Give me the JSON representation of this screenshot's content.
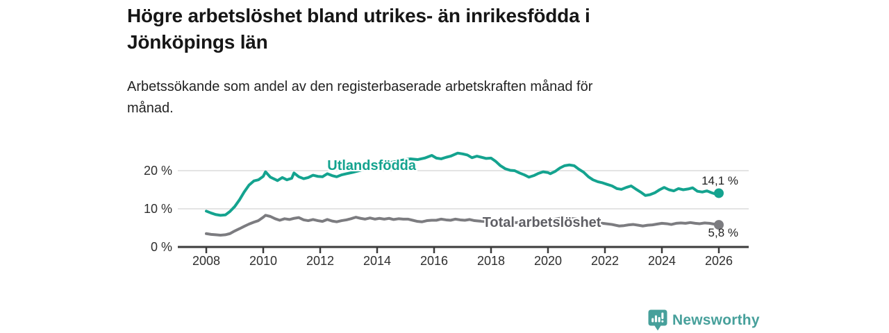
{
  "header": {
    "title": "Högre arbetslöshet bland utrikes- än inrikesfödda i Jönköpings län",
    "title_lines": [
      "Högre arbetslöshet bland utrikes- än inrikesfödda i",
      "Jönköpings län"
    ],
    "subtitle": "Arbetssökande som andel av den registerbaserade arbetskraften månad för månad.",
    "subtitle_lines": [
      "Arbetssökande som andel av den registerbaserade arbetskraften månad för",
      "månad."
    ]
  },
  "footer": {
    "brand": "Newsworthy",
    "logo_icon": "bar-chart-speech-bubble-icon",
    "brand_color": "#47a09b"
  },
  "colors": {
    "accent_teal": "#14a38f",
    "line_gray": "#7c7c80",
    "label_gray": "#5f5f65",
    "grid": "#dcdcdc",
    "axis": "#3b3b3b",
    "text": "#2e2e2e"
  },
  "chart_data": {
    "type": "line",
    "title": "Högre arbetslöshet bland utrikes- än inrikesfödda i Jönköpings län",
    "subtitle": "Arbetssökande som andel av den registerbaserade arbetskraften månad för månad.",
    "xlabel": "",
    "ylabel": "",
    "unit": "%",
    "xlim": [
      2007,
      2027
    ],
    "ylim": [
      0,
      26
    ],
    "grid": "horizontal",
    "legend_position": "inline-labels",
    "y_ticks": [
      {
        "value": 0,
        "label": "0 %"
      },
      {
        "value": 10,
        "label": "10 %"
      },
      {
        "value": 20,
        "label": "20 %"
      }
    ],
    "x_ticks": [
      2008,
      2010,
      2012,
      2014,
      2016,
      2018,
      2020,
      2022,
      2024,
      2026
    ],
    "series": [
      {
        "name": "Utlandsfödda",
        "color": "#14a38f",
        "label_color": "#14a38f",
        "label_anchor": {
          "x": 2012.25,
          "y": 21.2
        },
        "end_value": 14.1,
        "end_value_label": "14,1 %",
        "end_label_side": "above",
        "points": [
          [
            2008.0,
            9.4
          ],
          [
            2008.17,
            8.9
          ],
          [
            2008.33,
            8.5
          ],
          [
            2008.5,
            8.3
          ],
          [
            2008.67,
            8.4
          ],
          [
            2008.83,
            9.3
          ],
          [
            2009.0,
            10.6
          ],
          [
            2009.17,
            12.4
          ],
          [
            2009.33,
            14.4
          ],
          [
            2009.5,
            16.2
          ],
          [
            2009.67,
            17.3
          ],
          [
            2009.83,
            17.6
          ],
          [
            2010.0,
            18.5
          ],
          [
            2010.08,
            19.7
          ],
          [
            2010.25,
            18.3
          ],
          [
            2010.42,
            17.7
          ],
          [
            2010.5,
            17.4
          ],
          [
            2010.67,
            18.2
          ],
          [
            2010.83,
            17.6
          ],
          [
            2011.0,
            18.0
          ],
          [
            2011.08,
            19.4
          ],
          [
            2011.25,
            18.4
          ],
          [
            2011.42,
            17.9
          ],
          [
            2011.58,
            18.2
          ],
          [
            2011.75,
            18.8
          ],
          [
            2011.92,
            18.5
          ],
          [
            2012.08,
            18.4
          ],
          [
            2012.25,
            19.2
          ],
          [
            2012.42,
            18.7
          ],
          [
            2012.58,
            18.4
          ],
          [
            2012.75,
            18.9
          ],
          [
            2012.92,
            19.2
          ],
          [
            2013.17,
            19.6
          ],
          [
            2013.42,
            20.1
          ],
          [
            2013.67,
            20.6
          ],
          [
            2013.92,
            21.1
          ],
          [
            2014.17,
            21.7
          ],
          [
            2014.42,
            22.1
          ],
          [
            2014.67,
            22.4
          ],
          [
            2014.92,
            22.8
          ],
          [
            2015.17,
            23.1
          ],
          [
            2015.42,
            22.9
          ],
          [
            2015.67,
            23.3
          ],
          [
            2015.92,
            24.0
          ],
          [
            2016.08,
            23.3
          ],
          [
            2016.25,
            23.1
          ],
          [
            2016.42,
            23.5
          ],
          [
            2016.58,
            23.8
          ],
          [
            2016.83,
            24.6
          ],
          [
            2017.0,
            24.4
          ],
          [
            2017.17,
            24.1
          ],
          [
            2017.33,
            23.4
          ],
          [
            2017.5,
            23.8
          ],
          [
            2017.67,
            23.5
          ],
          [
            2017.83,
            23.2
          ],
          [
            2018.0,
            23.3
          ],
          [
            2018.17,
            22.4
          ],
          [
            2018.33,
            21.3
          ],
          [
            2018.5,
            20.5
          ],
          [
            2018.67,
            20.1
          ],
          [
            2018.83,
            20.0
          ],
          [
            2019.0,
            19.4
          ],
          [
            2019.17,
            18.9
          ],
          [
            2019.33,
            18.3
          ],
          [
            2019.5,
            18.7
          ],
          [
            2019.67,
            19.3
          ],
          [
            2019.83,
            19.7
          ],
          [
            2020.0,
            19.5
          ],
          [
            2020.08,
            19.2
          ],
          [
            2020.25,
            19.8
          ],
          [
            2020.42,
            20.7
          ],
          [
            2020.58,
            21.3
          ],
          [
            2020.75,
            21.5
          ],
          [
            2020.92,
            21.3
          ],
          [
            2021.08,
            20.4
          ],
          [
            2021.25,
            19.6
          ],
          [
            2021.42,
            18.4
          ],
          [
            2021.58,
            17.6
          ],
          [
            2021.75,
            17.1
          ],
          [
            2021.92,
            16.8
          ],
          [
            2022.08,
            16.4
          ],
          [
            2022.25,
            16.0
          ],
          [
            2022.42,
            15.3
          ],
          [
            2022.58,
            15.1
          ],
          [
            2022.75,
            15.6
          ],
          [
            2022.92,
            16.0
          ],
          [
            2023.08,
            15.2
          ],
          [
            2023.25,
            14.4
          ],
          [
            2023.42,
            13.5
          ],
          [
            2023.58,
            13.7
          ],
          [
            2023.75,
            14.2
          ],
          [
            2023.92,
            15.0
          ],
          [
            2024.08,
            15.6
          ],
          [
            2024.25,
            15.0
          ],
          [
            2024.42,
            14.7
          ],
          [
            2024.58,
            15.3
          ],
          [
            2024.75,
            15.0
          ],
          [
            2024.92,
            15.2
          ],
          [
            2025.08,
            15.5
          ],
          [
            2025.25,
            14.6
          ],
          [
            2025.42,
            14.4
          ],
          [
            2025.58,
            14.7
          ],
          [
            2025.75,
            14.2
          ],
          [
            2025.92,
            13.8
          ],
          [
            2026.0,
            14.1
          ]
        ]
      },
      {
        "name": "Total arbetslöshet",
        "color": "#7c7c80",
        "label_color": "#5f5f65",
        "label_anchor": {
          "x": 2017.7,
          "y": 6.3
        },
        "end_value": 5.8,
        "end_value_label": "5,8 %",
        "end_label_side": "below",
        "points": [
          [
            2008.0,
            3.5
          ],
          [
            2008.17,
            3.3
          ],
          [
            2008.33,
            3.2
          ],
          [
            2008.5,
            3.1
          ],
          [
            2008.67,
            3.2
          ],
          [
            2008.83,
            3.5
          ],
          [
            2009.0,
            4.2
          ],
          [
            2009.17,
            4.8
          ],
          [
            2009.33,
            5.4
          ],
          [
            2009.5,
            6.0
          ],
          [
            2009.67,
            6.5
          ],
          [
            2009.83,
            6.9
          ],
          [
            2010.0,
            7.8
          ],
          [
            2010.08,
            8.3
          ],
          [
            2010.25,
            8.0
          ],
          [
            2010.42,
            7.4
          ],
          [
            2010.58,
            7.0
          ],
          [
            2010.75,
            7.4
          ],
          [
            2010.92,
            7.2
          ],
          [
            2011.08,
            7.5
          ],
          [
            2011.25,
            7.7
          ],
          [
            2011.42,
            7.1
          ],
          [
            2011.58,
            6.9
          ],
          [
            2011.75,
            7.2
          ],
          [
            2011.92,
            6.9
          ],
          [
            2012.08,
            6.7
          ],
          [
            2012.25,
            7.2
          ],
          [
            2012.42,
            6.8
          ],
          [
            2012.58,
            6.6
          ],
          [
            2012.75,
            6.9
          ],
          [
            2012.92,
            7.1
          ],
          [
            2013.08,
            7.4
          ],
          [
            2013.25,
            7.8
          ],
          [
            2013.42,
            7.5
          ],
          [
            2013.58,
            7.3
          ],
          [
            2013.75,
            7.6
          ],
          [
            2013.92,
            7.3
          ],
          [
            2014.08,
            7.5
          ],
          [
            2014.25,
            7.3
          ],
          [
            2014.42,
            7.5
          ],
          [
            2014.58,
            7.2
          ],
          [
            2014.75,
            7.4
          ],
          [
            2014.92,
            7.3
          ],
          [
            2015.08,
            7.3
          ],
          [
            2015.25,
            7.0
          ],
          [
            2015.42,
            6.7
          ],
          [
            2015.58,
            6.6
          ],
          [
            2015.75,
            6.9
          ],
          [
            2015.92,
            7.0
          ],
          [
            2016.08,
            7.0
          ],
          [
            2016.25,
            7.3
          ],
          [
            2016.42,
            7.1
          ],
          [
            2016.58,
            7.0
          ],
          [
            2016.75,
            7.3
          ],
          [
            2016.92,
            7.1
          ],
          [
            2017.08,
            7.0
          ],
          [
            2017.25,
            7.2
          ],
          [
            2017.42,
            6.9
          ],
          [
            2017.58,
            6.8
          ],
          [
            2017.92,
            6.6
          ],
          [
            2018.25,
            6.4
          ],
          [
            2018.58,
            6.3
          ],
          [
            2018.92,
            6.4
          ],
          [
            2019.25,
            6.5
          ],
          [
            2019.58,
            6.6
          ],
          [
            2019.92,
            6.9
          ],
          [
            2020.25,
            7.3
          ],
          [
            2020.58,
            7.7
          ],
          [
            2020.92,
            7.4
          ],
          [
            2021.25,
            7.0
          ],
          [
            2021.58,
            6.6
          ],
          [
            2021.92,
            6.2
          ],
          [
            2022.25,
            5.9
          ],
          [
            2022.5,
            5.5
          ],
          [
            2022.67,
            5.6
          ],
          [
            2022.83,
            5.8
          ],
          [
            2023.0,
            5.9
          ],
          [
            2023.17,
            5.7
          ],
          [
            2023.33,
            5.5
          ],
          [
            2023.5,
            5.7
          ],
          [
            2023.67,
            5.8
          ],
          [
            2023.83,
            6.0
          ],
          [
            2024.0,
            6.2
          ],
          [
            2024.17,
            6.1
          ],
          [
            2024.33,
            5.9
          ],
          [
            2024.5,
            6.2
          ],
          [
            2024.67,
            6.3
          ],
          [
            2024.83,
            6.2
          ],
          [
            2025.0,
            6.4
          ],
          [
            2025.17,
            6.2
          ],
          [
            2025.33,
            6.1
          ],
          [
            2025.5,
            6.3
          ],
          [
            2025.67,
            6.2
          ],
          [
            2025.83,
            6.0
          ],
          [
            2026.0,
            5.8
          ]
        ]
      }
    ]
  }
}
